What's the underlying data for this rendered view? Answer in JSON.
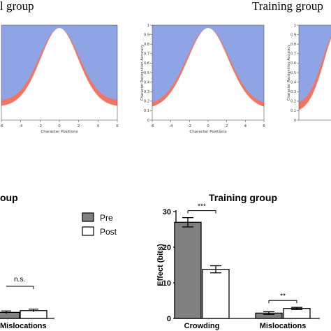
{
  "top_panels": {
    "left_title": "l group",
    "right_title": "Training group"
  },
  "bottom_left": {
    "title": "oup",
    "nsLabel": "n.s.",
    "categoryLabel": "Mislocations"
  },
  "colors": {
    "blueFill": "#8ea4e4",
    "orangeFill": "#f27462",
    "barPre": "#808080",
    "barPost": "#ffffff",
    "axis": "#000000"
  },
  "chart_data": [
    {
      "type": "area",
      "panel": "top-left",
      "xlabel": "Character Positions",
      "ylabel": "",
      "xlim": [
        -6,
        6
      ],
      "ylim": [
        0,
        1
      ],
      "xticks": [
        "-6",
        "-4",
        "-2",
        "0",
        "2",
        "4",
        "6"
      ],
      "yticks": [],
      "curve": {
        "peak": 0.97,
        "sigma": 2.05,
        "edge_min": 0.2,
        "band_width": 0.06
      }
    },
    {
      "type": "area",
      "panel": "top-middle",
      "xlabel": "Character Positions",
      "ylabel": "Character Recognition Accuracy",
      "xlim": [
        -6,
        6
      ],
      "ylim": [
        0,
        1
      ],
      "xticks": [
        "-6",
        "-4",
        "-2",
        "0",
        "2",
        "4",
        "6"
      ],
      "yticks": [
        "0",
        "0.1",
        "0.2",
        "0.3",
        "0.4",
        "0.5",
        "0.6",
        "0.7",
        "0.8",
        "0.9",
        "1"
      ],
      "curve": {
        "peak": 0.97,
        "sigma": 2.3,
        "edge_min": 0.16,
        "band_width": 0.045
      }
    },
    {
      "type": "area",
      "panel": "top-right",
      "xlabel": "",
      "ylabel": "Character Recognition Accuracy",
      "xlim": [
        -6,
        6
      ],
      "ylim": [
        0,
        1
      ],
      "xticks": [],
      "yticks": [
        "0",
        "0.1",
        "0.2",
        "0.3",
        "0.4",
        "0.5",
        "0.6",
        "0.7",
        "0.8",
        "0.9",
        "1"
      ],
      "curve": {
        "peak": 0.97,
        "sigma": 2.3,
        "edge_min": 0.16,
        "band_width": 0.08
      }
    },
    {
      "type": "bar",
      "panel": "bottom-right",
      "title": "Training group",
      "xlabel": "",
      "ylabel": "Effect (bits)",
      "ylim": [
        0,
        30
      ],
      "yticks": [
        "0",
        "10",
        "20",
        "30"
      ],
      "categories": [
        "Crowding",
        "Mislocations"
      ],
      "series": [
        {
          "name": "Pre",
          "values": [
            27.0,
            1.5
          ],
          "errors": [
            1.3,
            0.4
          ]
        },
        {
          "name": "Post",
          "values": [
            13.8,
            2.8
          ],
          "errors": [
            1.0,
            0.3
          ]
        }
      ],
      "significance": [
        "***",
        "**"
      ],
      "legend": "top-left"
    },
    {
      "type": "bar",
      "panel": "bottom-left",
      "xlabel": "",
      "ylabel": "",
      "categories": [
        "Mislocations"
      ],
      "series": [
        {
          "name": "Pre",
          "values": [
            1.7
          ],
          "errors": [
            0.4
          ]
        },
        {
          "name": "Post",
          "values": [
            2.2
          ],
          "errors": [
            0.4
          ]
        }
      ],
      "significance": [
        "n.s."
      ]
    }
  ]
}
